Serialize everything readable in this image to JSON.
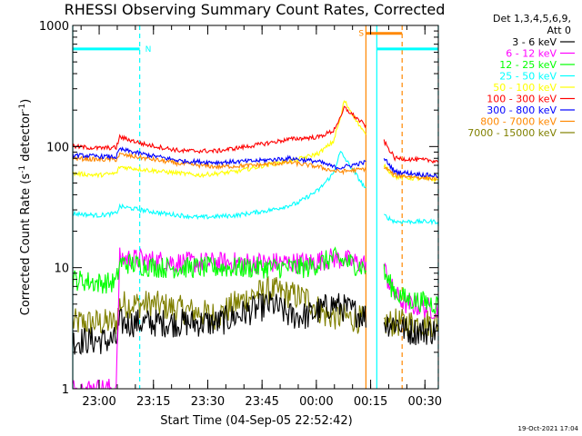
{
  "chart_data": {
    "type": "line",
    "title": "RHESSI Observing Summary Count Rates, Corrected",
    "xlabel": "Start Time (04-Sep-05 22:52:42)",
    "ylabel": "Corrected Count Rate (s-1 detector-1)",
    "ylabel_main": "Corrected Count Rate (s",
    "ylabel_sup1": "-1",
    "ylabel_mid": " detector",
    "ylabel_sup2": "-1",
    "ylabel_end": ")",
    "yscale": "log",
    "ylim": [
      1,
      1000
    ],
    "xlim_minutes": [
      0,
      101
    ],
    "x_ticks": [
      {
        "label": "23:00",
        "minutes": 7.3
      },
      {
        "label": "23:15",
        "minutes": 22.3
      },
      {
        "label": "23:30",
        "minutes": 37.3
      },
      {
        "label": "23:45",
        "minutes": 52.3
      },
      {
        "label": "00:00",
        "minutes": 67.3
      },
      {
        "label": "00:15",
        "minutes": 82.3
      },
      {
        "label": "00:30",
        "minutes": 97.3
      }
    ],
    "y_ticks": [
      {
        "label": "1",
        "value": 1
      },
      {
        "label": "10",
        "value": 10
      },
      {
        "label": "100",
        "value": 100
      },
      {
        "label": "1000",
        "value": 1000
      }
    ],
    "legend_header": [
      "Det 1,3,4,5,6,9,",
      "Att 0"
    ],
    "footer": "19-Oct-2021 17:04",
    "segments": [
      [
        0,
        81
      ],
      [
        86,
        101
      ]
    ],
    "series": [
      {
        "name": "3 - 6 keV",
        "color": "#000000",
        "points": [
          [
            0,
            2.5
          ],
          [
            7,
            2.5
          ],
          [
            12,
            2.5
          ],
          [
            13,
            3.5
          ],
          [
            20,
            3.5
          ],
          [
            30,
            3.5
          ],
          [
            40,
            3.5
          ],
          [
            50,
            4.5
          ],
          [
            55,
            5
          ],
          [
            60,
            4
          ],
          [
            65,
            4
          ],
          [
            72,
            5
          ],
          [
            86,
            3.5
          ],
          [
            90,
            3.5
          ],
          [
            92,
            3
          ],
          [
            101,
            3
          ]
        ]
      },
      {
        "name": "6 - 12 keV",
        "color": "#ff00ff",
        "points": [
          [
            0,
            1
          ],
          [
            7,
            1
          ],
          [
            12,
            1
          ],
          [
            13,
            12
          ],
          [
            30,
            11
          ],
          [
            40,
            11
          ],
          [
            55,
            11
          ],
          [
            65,
            11
          ],
          [
            72,
            12
          ],
          [
            86,
            10
          ],
          [
            87,
            8
          ],
          [
            89,
            6
          ],
          [
            92,
            5
          ],
          [
            101,
            4.5
          ]
        ]
      },
      {
        "name": "12 - 25 keV",
        "color": "#00ff00",
        "points": [
          [
            0,
            8
          ],
          [
            7,
            7.5
          ],
          [
            12,
            7.5
          ],
          [
            13,
            11
          ],
          [
            25,
            10
          ],
          [
            35,
            10
          ],
          [
            45,
            10
          ],
          [
            55,
            10
          ],
          [
            65,
            10
          ],
          [
            72,
            12
          ],
          [
            86,
            9
          ],
          [
            88,
            7
          ],
          [
            90,
            6
          ],
          [
            92,
            5.5
          ],
          [
            101,
            5
          ]
        ]
      },
      {
        "name": "25 - 50 keV",
        "color": "#00ffff",
        "points": [
          [
            0,
            28
          ],
          [
            7,
            27
          ],
          [
            12,
            28
          ],
          [
            13,
            32
          ],
          [
            25,
            28
          ],
          [
            35,
            26
          ],
          [
            45,
            27
          ],
          [
            55,
            30
          ],
          [
            62,
            34
          ],
          [
            68,
            44
          ],
          [
            72,
            60
          ],
          [
            73,
            75
          ],
          [
            74,
            90
          ],
          [
            86,
            27
          ],
          [
            89,
            24
          ],
          [
            101,
            24
          ]
        ]
      },
      {
        "name": "50 - 100 keV",
        "color": "#ffff00",
        "points": [
          [
            0,
            60
          ],
          [
            7,
            58
          ],
          [
            12,
            60
          ],
          [
            13,
            68
          ],
          [
            25,
            62
          ],
          [
            35,
            58
          ],
          [
            45,
            62
          ],
          [
            55,
            72
          ],
          [
            62,
            78
          ],
          [
            68,
            88
          ],
          [
            72,
            110
          ],
          [
            73,
            140
          ],
          [
            74,
            170
          ],
          [
            75,
            240
          ],
          [
            86,
            70
          ],
          [
            89,
            56
          ],
          [
            101,
            53
          ]
        ]
      },
      {
        "name": "100 - 300 keV",
        "color": "#ff0000",
        "points": [
          [
            0,
            100
          ],
          [
            7,
            97
          ],
          [
            12,
            98
          ],
          [
            13,
            120
          ],
          [
            20,
            104
          ],
          [
            30,
            92
          ],
          [
            40,
            92
          ],
          [
            50,
            102
          ],
          [
            60,
            115
          ],
          [
            68,
            120
          ],
          [
            72,
            135
          ],
          [
            73,
            155
          ],
          [
            74,
            170
          ],
          [
            75,
            210
          ],
          [
            86,
            110
          ],
          [
            89,
            80
          ],
          [
            101,
            76
          ]
        ]
      },
      {
        "name": "300 - 800 keV",
        "color": "#0000ff",
        "points": [
          [
            0,
            85
          ],
          [
            7,
            83
          ],
          [
            12,
            82
          ],
          [
            13,
            95
          ],
          [
            20,
            86
          ],
          [
            30,
            76
          ],
          [
            40,
            74
          ],
          [
            50,
            76
          ],
          [
            60,
            80
          ],
          [
            68,
            75
          ],
          [
            72,
            68
          ],
          [
            74,
            67
          ],
          [
            86,
            80
          ],
          [
            89,
            62
          ],
          [
            101,
            57
          ]
        ]
      },
      {
        "name": "800 - 7000 keV",
        "color": "#ff8800",
        "points": [
          [
            0,
            80
          ],
          [
            7,
            78
          ],
          [
            12,
            78
          ],
          [
            13,
            86
          ],
          [
            20,
            80
          ],
          [
            30,
            72
          ],
          [
            40,
            68
          ],
          [
            50,
            70
          ],
          [
            60,
            74
          ],
          [
            68,
            68
          ],
          [
            72,
            63
          ],
          [
            74,
            62
          ],
          [
            86,
            68
          ],
          [
            89,
            58
          ],
          [
            101,
            54
          ]
        ]
      },
      {
        "name": "7000 - 15000 keV",
        "color": "#808000",
        "points": [
          [
            0,
            3.5
          ],
          [
            7,
            3.5
          ],
          [
            12,
            3.5
          ],
          [
            13,
            5
          ],
          [
            22,
            5
          ],
          [
            30,
            4.5
          ],
          [
            40,
            4
          ],
          [
            45,
            5
          ],
          [
            50,
            6
          ],
          [
            55,
            6.5
          ],
          [
            60,
            6
          ],
          [
            65,
            5.5
          ],
          [
            70,
            4
          ],
          [
            72,
            4
          ],
          [
            86,
            3.5
          ],
          [
            90,
            3.5
          ],
          [
            101,
            3.5
          ]
        ]
      }
    ],
    "state_bars": [
      {
        "label": "N",
        "color": "#00ffff",
        "start": 0,
        "end": 18.5,
        "value": 640
      },
      {
        "label": "S",
        "color": "#ff8800",
        "start": 81,
        "end": 91,
        "value": 860
      },
      {
        "label": "",
        "color": "#00ffff",
        "start": 84,
        "end": 101,
        "value": 640
      }
    ],
    "vertical_lines": [
      {
        "minutes": 0,
        "color": "#00ffff",
        "style": "solid"
      },
      {
        "minutes": 18.5,
        "color": "#00ffff",
        "style": "dashed"
      },
      {
        "minutes": 81,
        "color": "#ff8800",
        "style": "solid"
      },
      {
        "minutes": 84,
        "color": "#00ffff",
        "style": "solid"
      },
      {
        "minutes": 91,
        "color": "#ff8800",
        "style": "dashed"
      },
      {
        "minutes": 101,
        "color": "#00ffff",
        "style": "dashed"
      }
    ]
  }
}
